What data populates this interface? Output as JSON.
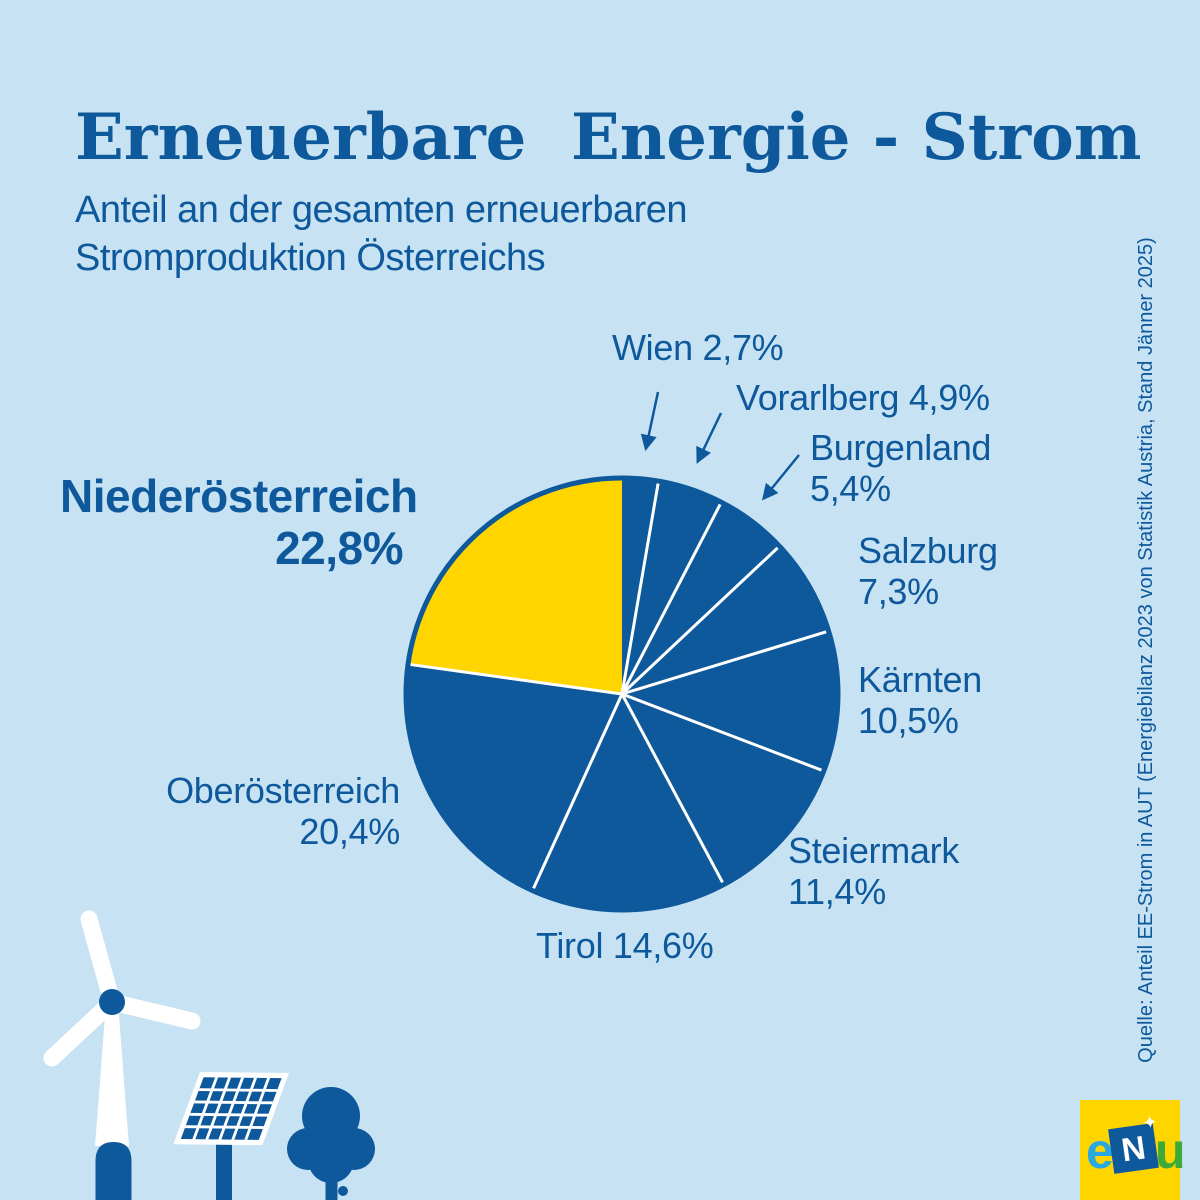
{
  "page": {
    "colors": {
      "background": "#C7E3F3",
      "brand_blue": "#0E589C",
      "highlight_yellow": "#FFD500",
      "divider_white": "#FFFFFF",
      "logo_e_blue": "#29A9E1",
      "logo_u_green": "#3BAA36"
    }
  },
  "header": {
    "title": "Erneuerbare  Energie - Strom",
    "subtitle_lines": [
      "Anteil an der gesamten erneuerbaren",
      "Stromproduktion Österreichs"
    ]
  },
  "source_note": "Quelle: Anteil EE-Strom in AUT (Energiebilanz 2023 von Statistik Austria, Stand Jänner 2025)",
  "logo": {
    "background": "#FFD500",
    "letters": [
      {
        "char": "e",
        "color": "#29A9E1"
      },
      {
        "char": "N",
        "color": "#FFFFFF"
      },
      {
        "char": "u",
        "color": "#3BAA36"
      }
    ],
    "sparkle": "✦"
  },
  "chart_data": {
    "type": "pie",
    "title": "Erneuerbare Energie - Strom",
    "subtitle": "Anteil an der gesamten erneuerbaren Stromproduktion Österreichs",
    "value_unit": "%",
    "start_angle_deg": 0,
    "direction": "clockwise",
    "total": 100.0,
    "highlighted_slice": "Niederösterreich",
    "slices": [
      {
        "name": "Wien",
        "value": 2.7,
        "value_label": "2,7%",
        "color": "#0E589C"
      },
      {
        "name": "Vorarlberg",
        "value": 4.9,
        "value_label": "4,9%",
        "color": "#0E589C"
      },
      {
        "name": "Burgenland",
        "value": 5.4,
        "value_label": "5,4%",
        "color": "#0E589C"
      },
      {
        "name": "Salzburg",
        "value": 7.3,
        "value_label": "7,3%",
        "color": "#0E589C"
      },
      {
        "name": "Kärnten",
        "value": 10.5,
        "value_label": "10,5%",
        "color": "#0E589C"
      },
      {
        "name": "Steiermark",
        "value": 11.4,
        "value_label": "11,4%",
        "color": "#0E589C"
      },
      {
        "name": "Tirol",
        "value": 14.6,
        "value_label": "14,6%",
        "color": "#0E589C"
      },
      {
        "name": "Oberösterreich",
        "value": 20.4,
        "value_label": "20,4%",
        "color": "#0E589C"
      },
      {
        "name": "Niederösterreich",
        "value": 22.8,
        "value_label": "22,8%",
        "color": "#FFD500"
      }
    ]
  }
}
